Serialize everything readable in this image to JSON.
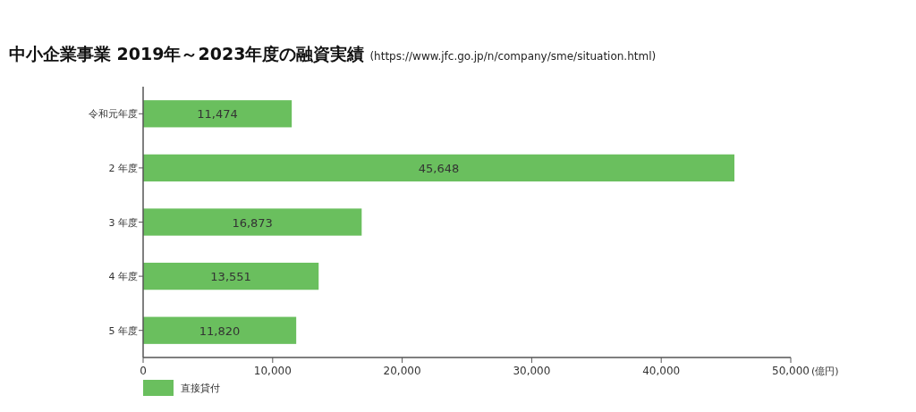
{
  "chart_data": {
    "type": "bar",
    "orientation": "horizontal",
    "title": "中小企業事業 2019年～2023年度の融資実績",
    "subtitle": "(https://www.jfc.go.jp/n/company/sme/situation.html)",
    "categories": [
      "令和元年度",
      "2 年度",
      "3 年度",
      "4 年度",
      "5 年度"
    ],
    "series": [
      {
        "name": "直接貸付",
        "color": "#6abf5e",
        "values": [
          11474,
          45648,
          16873,
          13551,
          11820
        ]
      }
    ],
    "value_labels": [
      "11,474",
      "45,648",
      "16,873",
      "13,551",
      "11,820"
    ],
    "xlabel": "(億円)",
    "xlim": [
      0,
      50000
    ],
    "xticks": [
      0,
      {
        "value": 10000,
        "label": "10,000"
      },
      {
        "value": 20000,
        "label": "20,000"
      },
      {
        "value": 30000,
        "label": "30,000"
      },
      {
        "value": 40000,
        "label": "40,000"
      },
      {
        "value": 50000,
        "label": "50,000"
      }
    ],
    "grid": false,
    "legend": "bottom left"
  }
}
